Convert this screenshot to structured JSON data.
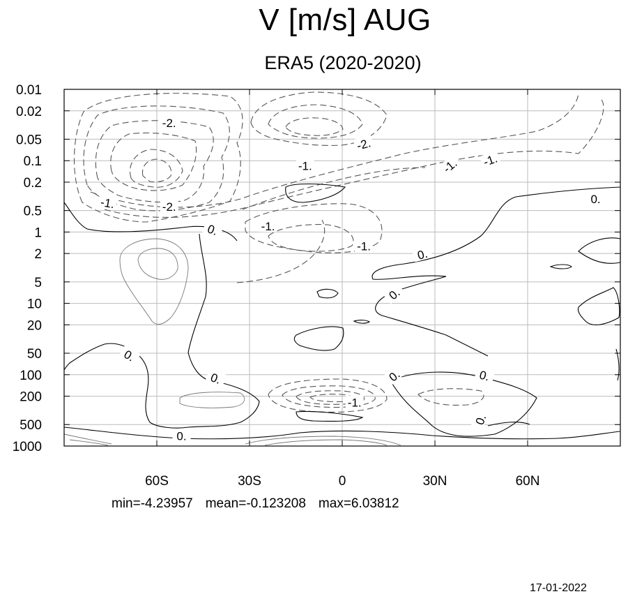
{
  "chart_data": {
    "type": "contour",
    "title": "V [m/s] AUG",
    "subtitle": "ERA5 (2020-2020)",
    "x_ticks": [
      {
        "value": -60,
        "label": "60S"
      },
      {
        "value": -30,
        "label": "30S"
      },
      {
        "value": 0,
        "label": "0"
      },
      {
        "value": 30,
        "label": "30N"
      },
      {
        "value": 60,
        "label": "60N"
      }
    ],
    "xlim": [
      -90,
      90
    ],
    "y_ticks": [
      {
        "value": 0.01,
        "label": "0.01"
      },
      {
        "value": 0.02,
        "label": "0.02"
      },
      {
        "value": 0.05,
        "label": "0.05"
      },
      {
        "value": 0.1,
        "label": "0.1"
      },
      {
        "value": 0.2,
        "label": "0.2"
      },
      {
        "value": 0.5,
        "label": "0.5"
      },
      {
        "value": 1,
        "label": "1"
      },
      {
        "value": 2,
        "label": "2"
      },
      {
        "value": 5,
        "label": "5"
      },
      {
        "value": 10,
        "label": "10"
      },
      {
        "value": 20,
        "label": "20"
      },
      {
        "value": 50,
        "label": "50"
      },
      {
        "value": 100,
        "label": "100"
      },
      {
        "value": 200,
        "label": "200"
      },
      {
        "value": 500,
        "label": "500"
      },
      {
        "value": 1000,
        "label": "1000"
      }
    ],
    "ylim": [
      0.01,
      1000
    ],
    "y_scale": "log",
    "y_reversed": true,
    "grid": true,
    "contour_labels": [
      {
        "text": "-2.",
        "lat": -56,
        "p": 0.03,
        "rot": 0
      },
      {
        "text": "-2.",
        "lat": 7,
        "p": 0.06,
        "rot": -15
      },
      {
        "text": "-1.",
        "lat": -12,
        "p": 0.12,
        "rot": 0
      },
      {
        "text": "-1.",
        "lat": 35,
        "p": 0.12,
        "rot": -40
      },
      {
        "text": "-1.",
        "lat": 48,
        "p": 0.1,
        "rot": -20
      },
      {
        "text": "-1.",
        "lat": -76,
        "p": 0.4,
        "rot": 10
      },
      {
        "text": "-2.",
        "lat": -56,
        "p": 0.45,
        "rot": 0
      },
      {
        "text": "-1.",
        "lat": -24,
        "p": 0.85,
        "rot": 0
      },
      {
        "text": "-1.",
        "lat": 7,
        "p": 1.6,
        "rot": 0
      },
      {
        "text": "0.",
        "lat": -42,
        "p": 0.95,
        "rot": 20
      },
      {
        "text": "0.",
        "lat": 82,
        "p": 0.35,
        "rot": 0
      },
      {
        "text": "0.",
        "lat": 26,
        "p": 2.1,
        "rot": -15
      },
      {
        "text": "0.",
        "lat": 17,
        "p": 7.5,
        "rot": -40
      },
      {
        "text": "0.",
        "lat": -69,
        "p": 55,
        "rot": 30
      },
      {
        "text": "0.",
        "lat": -41,
        "p": 115,
        "rot": 20
      },
      {
        "text": "0.",
        "lat": 17,
        "p": 105,
        "rot": -40
      },
      {
        "text": "0.",
        "lat": 46,
        "p": 105,
        "rot": 15
      },
      {
        "text": "0.",
        "lat": 45,
        "p": 430,
        "rot": -70
      },
      {
        "text": "0.",
        "lat": -52,
        "p": 740,
        "rot": 0
      },
      {
        "text": "-1.",
        "lat": 4,
        "p": 250,
        "rot": 0
      }
    ],
    "stats": {
      "min": "min=-4.23957",
      "mean": "mean=-0.123208",
      "max": "max=6.03812"
    }
  },
  "footer": {
    "date": "17-01-2022"
  }
}
